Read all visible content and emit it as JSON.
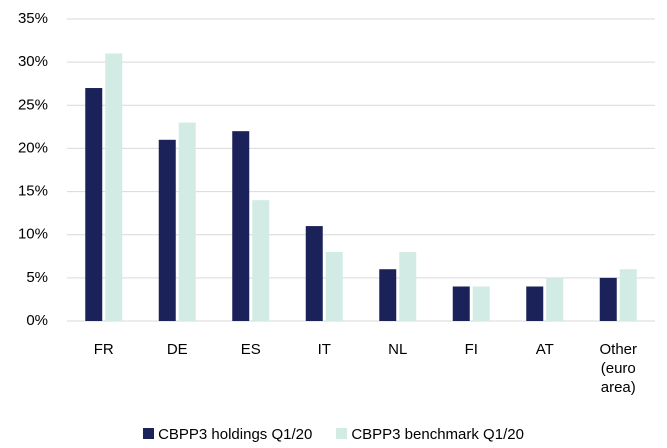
{
  "chart_data": {
    "type": "bar",
    "categories": [
      "FR",
      "DE",
      "ES",
      "IT",
      "NL",
      "FI",
      "AT",
      "Other (euro area)"
    ],
    "series": [
      {
        "name": "CBPP3 holdings Q1/20",
        "color": "#1b2259",
        "values": [
          27,
          21,
          22,
          11,
          6,
          4,
          4,
          5
        ]
      },
      {
        "name": "CBPP3 benchmark Q1/20",
        "color": "#d2ebe5",
        "values": [
          31,
          23,
          14,
          8,
          8,
          4,
          5,
          6
        ]
      }
    ],
    "ylim": [
      0,
      35
    ],
    "yticks": [
      {
        "value": 0,
        "label": "0%"
      },
      {
        "value": 5,
        "label": "5%"
      },
      {
        "value": 10,
        "label": "10%"
      },
      {
        "value": 15,
        "label": "15%"
      },
      {
        "value": 20,
        "label": "20%"
      },
      {
        "value": 25,
        "label": "25%"
      },
      {
        "value": 30,
        "label": "30%"
      },
      {
        "value": 35,
        "label": "35%"
      }
    ],
    "grid": true,
    "legend": "bottom"
  }
}
